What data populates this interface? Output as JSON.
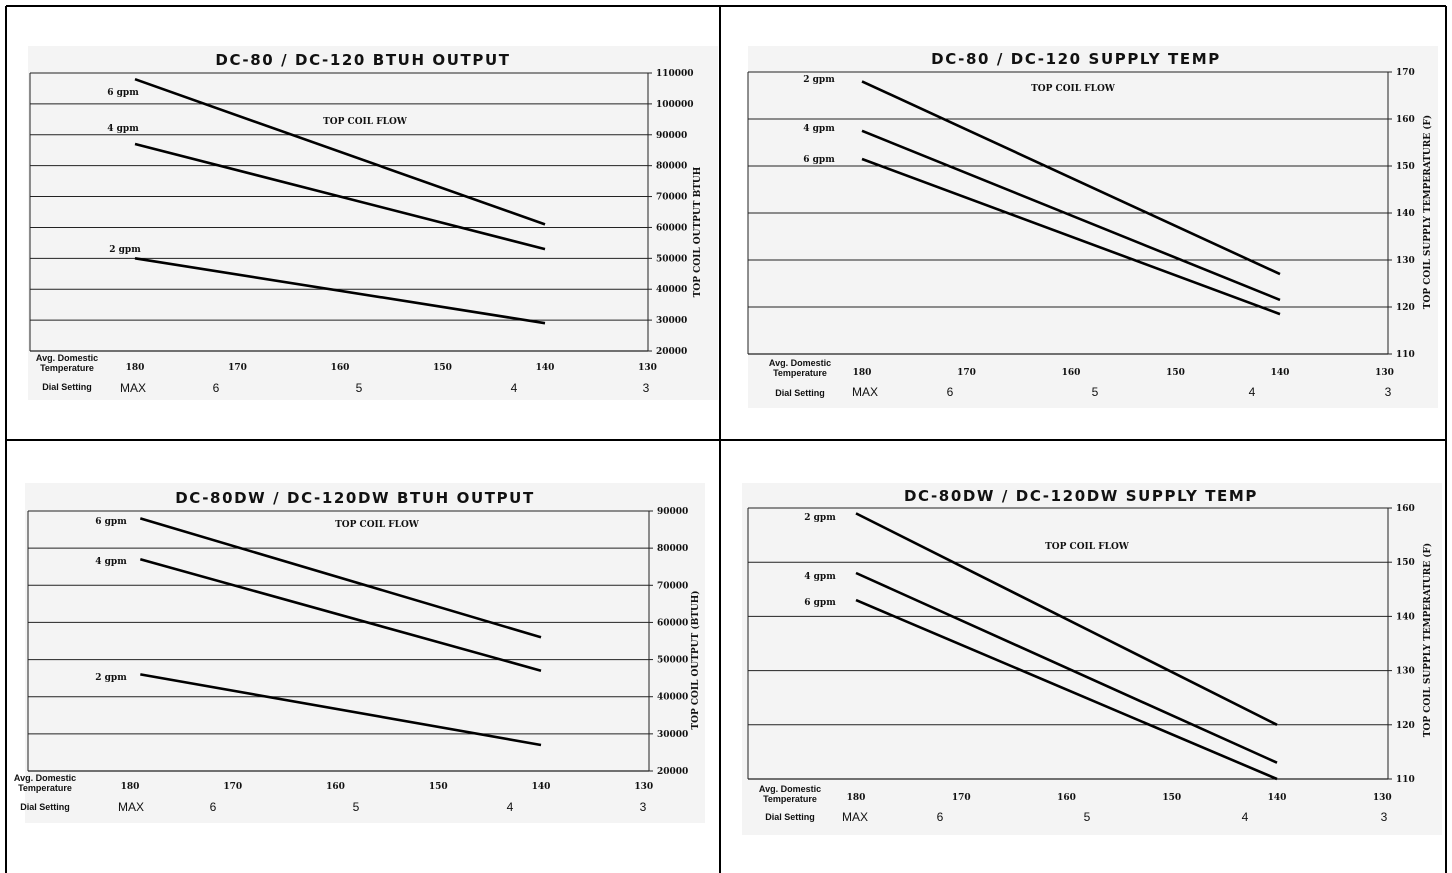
{
  "chart_data": [
    {
      "type": "line",
      "title": "DC-80 / DC-120 BTUH OUTPUT",
      "annotation": "TOP COIL FLOW",
      "ylabel": "TOP COIL OUTPUT  BTUH",
      "xlabel": "Avg. Domestic Temperature",
      "xlim": [
        180,
        130
      ],
      "ylim": [
        20000,
        110000
      ],
      "x_ticks": [
        "180",
        "170",
        "160",
        "150",
        "140",
        "130"
      ],
      "y_ticks": [
        "110000",
        "100000",
        "90000",
        "80000",
        "70000",
        "60000",
        "50000",
        "40000",
        "30000",
        "20000"
      ],
      "dial_label": "Dial Setting",
      "dial_values": [
        "MAX",
        "6",
        "5",
        "4",
        "3"
      ],
      "grid": true,
      "series": [
        {
          "name": "6 gpm",
          "x": [
            180,
            140
          ],
          "y": [
            108000,
            61000
          ]
        },
        {
          "name": "4 gpm",
          "x": [
            180,
            140
          ],
          "y": [
            87000,
            53000
          ]
        },
        {
          "name": "2 gpm",
          "x": [
            180,
            140
          ],
          "y": [
            50000,
            29000
          ]
        }
      ]
    },
    {
      "type": "line",
      "title": "DC-80 / DC-120 SUPPLY TEMP",
      "annotation": "TOP COIL FLOW",
      "ylabel": "TOP COIL SUPPLY TEMPERATURE (F)",
      "xlabel": "Avg. Domestic Temperature",
      "xlim": [
        180,
        130
      ],
      "ylim": [
        110,
        170
      ],
      "x_ticks": [
        "180",
        "170",
        "160",
        "150",
        "140",
        "130"
      ],
      "y_ticks": [
        "170",
        "160",
        "150",
        "140",
        "130",
        "120",
        "110"
      ],
      "dial_label": "Dial Setting",
      "dial_values": [
        "MAX",
        "6",
        "5",
        "4",
        "3"
      ],
      "grid": true,
      "series": [
        {
          "name": "2 gpm",
          "x": [
            180,
            140
          ],
          "y": [
            168,
            127
          ]
        },
        {
          "name": "4 gpm",
          "x": [
            180,
            140
          ],
          "y": [
            157.5,
            121.5
          ]
        },
        {
          "name": "6 gpm",
          "x": [
            180,
            140
          ],
          "y": [
            151.5,
            118.5
          ]
        }
      ]
    },
    {
      "type": "line",
      "title": "DC-80DW / DC-120DW BTUH OUTPUT",
      "annotation": "TOP COIL FLOW",
      "ylabel": "TOP COIL OUTPUT (BTUH)",
      "xlabel": "Avg. Domestic Temperature",
      "xlim": [
        180,
        130
      ],
      "ylim": [
        20000,
        90000
      ],
      "x_ticks": [
        "180",
        "170",
        "160",
        "150",
        "140",
        "130"
      ],
      "y_ticks": [
        "90000",
        "80000",
        "70000",
        "60000",
        "50000",
        "40000",
        "30000",
        "20000"
      ],
      "dial_label": "Dial Setting",
      "dial_values": [
        "MAX",
        "6",
        "5",
        "4",
        "3"
      ],
      "grid": true,
      "series": [
        {
          "name": "6 gpm",
          "x": [
            179,
            140
          ],
          "y": [
            88000,
            56000
          ]
        },
        {
          "name": "4 gpm",
          "x": [
            179,
            140
          ],
          "y": [
            77000,
            47000
          ]
        },
        {
          "name": "2 gpm",
          "x": [
            179,
            140
          ],
          "y": [
            46000,
            27000
          ]
        }
      ]
    },
    {
      "type": "line",
      "title": "DC-80DW / DC-120DW SUPPLY TEMP",
      "annotation": "TOP COIL FLOW",
      "ylabel": "TOP COIL SUPPLY TEMPERATURE (F)",
      "xlabel": "Avg. Domestic Temperature",
      "xlim": [
        180,
        130
      ],
      "ylim": [
        110,
        160
      ],
      "x_ticks": [
        "180",
        "170",
        "160",
        "150",
        "140",
        "130"
      ],
      "y_ticks": [
        "160",
        "150",
        "140",
        "130",
        "120",
        "110"
      ],
      "dial_label": "Dial Setting",
      "dial_values": [
        "MAX",
        "6",
        "5",
        "4",
        "3"
      ],
      "grid": true,
      "series": [
        {
          "name": "2 gpm",
          "x": [
            180,
            140
          ],
          "y": [
            159,
            120
          ]
        },
        {
          "name": "4 gpm",
          "x": [
            180,
            140
          ],
          "y": [
            148,
            113
          ]
        },
        {
          "name": "6 gpm",
          "x": [
            180,
            140
          ],
          "y": [
            143,
            110
          ]
        }
      ]
    }
  ]
}
